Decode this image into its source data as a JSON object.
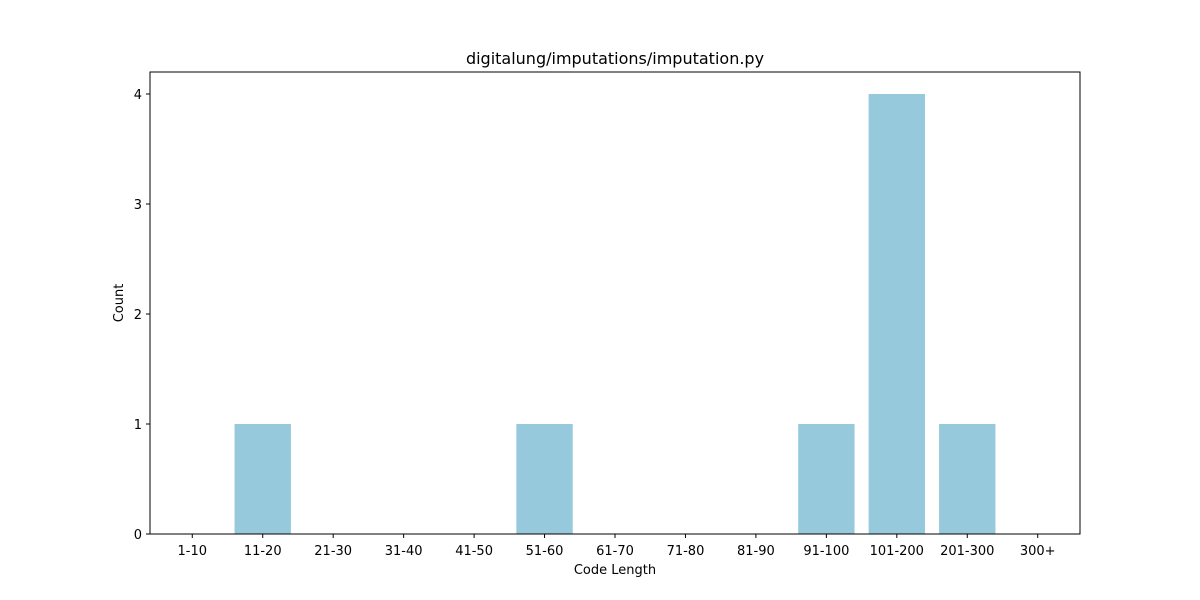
{
  "chart_data": {
    "type": "bar",
    "title": "digitalung/imputations/imputation.py",
    "xlabel": "Code Length",
    "ylabel": "Count",
    "categories": [
      "1-10",
      "11-20",
      "21-30",
      "31-40",
      "41-50",
      "51-60",
      "61-70",
      "71-80",
      "81-90",
      "91-100",
      "101-200",
      "201-300",
      "300+"
    ],
    "values": [
      0,
      1,
      0,
      0,
      0,
      1,
      0,
      0,
      0,
      1,
      4,
      1,
      0
    ],
    "ylim": [
      0,
      4.2
    ],
    "yticks": [
      0,
      1,
      2,
      3,
      4
    ],
    "bar_color": "#96c9dc",
    "grid": false,
    "legend": "none"
  }
}
